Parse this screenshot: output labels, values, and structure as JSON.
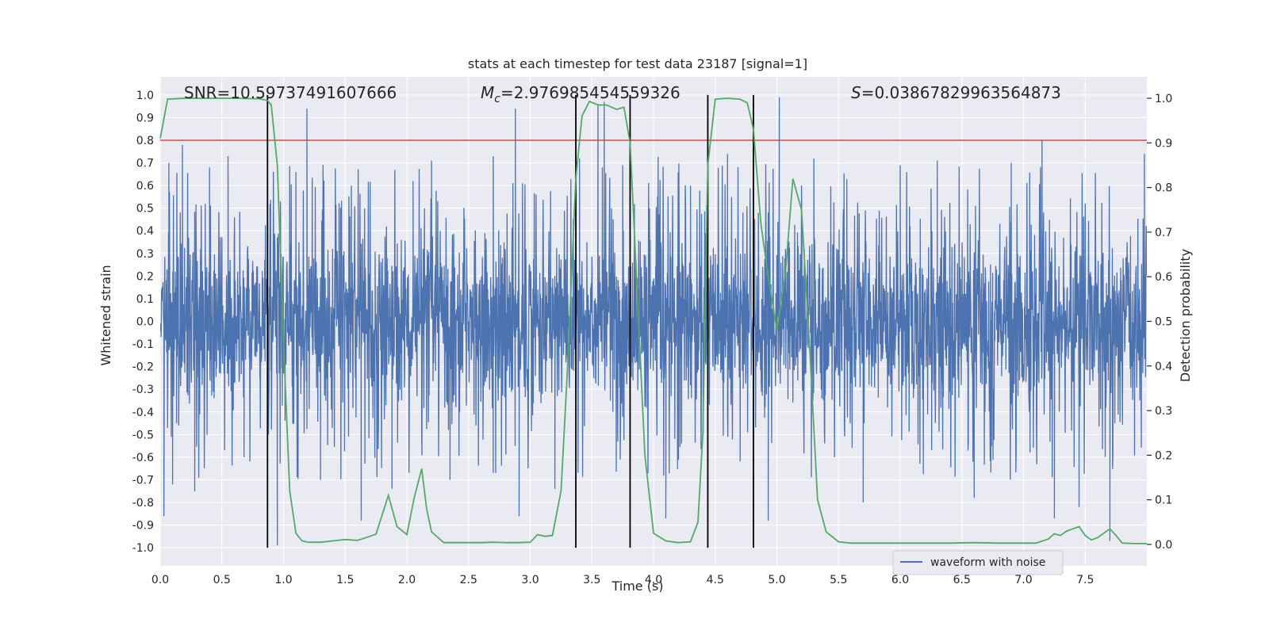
{
  "chart_data": {
    "type": "line",
    "title": "stats at each timestep for test data 23187 [signal=1]",
    "xlabel": "Time (s)",
    "ylabel_left": "Whitened strain",
    "ylabel_right": "Detection probability",
    "xlim": [
      0.0,
      8.0
    ],
    "ylim_left": [
      -1.08,
      1.08
    ],
    "ylim_right": [
      -0.048,
      1.048
    ],
    "x_ticks": [
      "0.0",
      "0.5",
      "1.0",
      "1.5",
      "2.0",
      "2.5",
      "3.0",
      "3.5",
      "4.0",
      "4.5",
      "5.0",
      "5.5",
      "6.0",
      "6.5",
      "7.0",
      "7.5"
    ],
    "x_tick_values": [
      0.0,
      0.5,
      1.0,
      1.5,
      2.0,
      2.5,
      3.0,
      3.5,
      4.0,
      4.5,
      5.0,
      5.5,
      6.0,
      6.5,
      7.0,
      7.5
    ],
    "y_left_ticks": [
      "1.0",
      "0.9",
      "0.8",
      "0.7",
      "0.6",
      "0.5",
      "0.4",
      "0.3",
      "0.2",
      "0.1",
      "0.0",
      "-0.1",
      "-0.2",
      "-0.3",
      "-0.4",
      "-0.5",
      "-0.6",
      "-0.7",
      "-0.8",
      "-0.9",
      "-1.0"
    ],
    "y_left_tick_values": [
      1.0,
      0.9,
      0.8,
      0.7,
      0.6,
      0.5,
      0.4,
      0.3,
      0.2,
      0.1,
      0.0,
      -0.1,
      -0.2,
      -0.3,
      -0.4,
      -0.5,
      -0.6,
      -0.7,
      -0.8,
      -0.9,
      -1.0
    ],
    "y_right_ticks": [
      "1.0",
      "0.9",
      "0.8",
      "0.7",
      "0.6",
      "0.5",
      "0.4",
      "0.3",
      "0.2",
      "0.1",
      "0.0"
    ],
    "y_right_tick_values": [
      1.0,
      0.9,
      0.8,
      0.7,
      0.6,
      0.5,
      0.4,
      0.3,
      0.2,
      0.1,
      0.0
    ],
    "annotations": {
      "snr": "SNR=10.59737491607666",
      "mc_symbol": "M",
      "mc_sub": "c",
      "mc_value": "=2.976985454559326",
      "s_symbol": "S",
      "s_value": "=0.03867829963564873"
    },
    "legend": {
      "label": "waveform with noise",
      "location": "lower-right"
    },
    "threshold": {
      "value": 0.8,
      "color": "#c44e52"
    },
    "detection_boundaries": [
      0.87,
      3.37,
      3.81,
      4.44,
      4.81
    ],
    "series": [
      {
        "name": "waveform with noise",
        "axis": "left",
        "color": "#4c72b0",
        "description": "Whitened noisy strain, roughly within +-0.5 with spikes up to +-1.0",
        "peaks": [
          [
            0.03,
            -0.86
          ],
          [
            0.07,
            0.7
          ],
          [
            0.1,
            -0.72
          ],
          [
            0.18,
            0.78
          ],
          [
            0.28,
            -0.75
          ],
          [
            0.4,
            0.68
          ],
          [
            0.55,
            0.73
          ],
          [
            0.68,
            -0.6
          ],
          [
            0.87,
            0.72
          ],
          [
            0.95,
            -0.99
          ],
          [
            1.1,
            0.66
          ],
          [
            1.19,
            0.94
          ],
          [
            1.3,
            -0.7
          ],
          [
            1.55,
            0.6
          ],
          [
            1.63,
            -0.88
          ],
          [
            1.88,
            -0.74
          ],
          [
            2.05,
            0.62
          ],
          [
            2.2,
            0.71
          ],
          [
            2.35,
            -0.7
          ],
          [
            2.7,
            0.73
          ],
          [
            2.88,
            0.94
          ],
          [
            2.91,
            -0.86
          ],
          [
            3.2,
            -0.74
          ],
          [
            3.4,
            0.72
          ],
          [
            3.55,
            0.96
          ],
          [
            3.6,
            0.97
          ],
          [
            3.75,
            0.69
          ],
          [
            4.1,
            -0.87
          ],
          [
            4.3,
            0.6
          ],
          [
            4.6,
            0.74
          ],
          [
            4.93,
            -0.88
          ],
          [
            5.02,
            0.99
          ],
          [
            5.3,
            0.72
          ],
          [
            5.7,
            -0.8
          ],
          [
            6.0,
            0.69
          ],
          [
            6.3,
            0.71
          ],
          [
            6.6,
            -0.78
          ],
          [
            6.9,
            0.7
          ],
          [
            7.15,
            0.8
          ],
          [
            7.25,
            -0.87
          ],
          [
            7.45,
            -0.82
          ],
          [
            7.7,
            -0.97
          ],
          [
            7.98,
            0.74
          ]
        ]
      },
      {
        "name": "detection probability",
        "axis": "right",
        "color": "#55a868",
        "x": [
          0.0,
          0.06,
          0.2,
          0.4,
          0.6,
          0.8,
          0.87,
          0.9,
          0.95,
          1.0,
          1.05,
          1.1,
          1.15,
          1.2,
          1.3,
          1.4,
          1.5,
          1.6,
          1.7,
          1.75,
          1.85,
          1.92,
          2.0,
          2.06,
          2.12,
          2.16,
          2.2,
          2.3,
          2.4,
          2.5,
          2.6,
          2.7,
          2.8,
          2.9,
          3.0,
          3.06,
          3.12,
          3.18,
          3.25,
          3.3,
          3.37,
          3.42,
          3.48,
          3.55,
          3.62,
          3.7,
          3.76,
          3.81,
          3.87,
          3.93,
          4.0,
          4.1,
          4.2,
          4.3,
          4.36,
          4.4,
          4.44,
          4.5,
          4.6,
          4.7,
          4.76,
          4.81,
          4.87,
          4.93,
          5.0,
          5.07,
          5.13,
          5.2,
          5.27,
          5.33,
          5.4,
          5.5,
          5.6,
          5.8,
          6.0,
          6.2,
          6.4,
          6.6,
          6.8,
          7.0,
          7.1,
          7.2,
          7.25,
          7.3,
          7.35,
          7.4,
          7.45,
          7.5,
          7.55,
          7.6,
          7.65,
          7.7,
          7.75,
          7.8,
          7.9,
          8.0
        ],
        "y": [
          0.91,
          0.998,
          1.0,
          1.0,
          1.0,
          0.999,
          0.995,
          0.985,
          0.85,
          0.45,
          0.12,
          0.025,
          0.008,
          0.005,
          0.005,
          0.008,
          0.011,
          0.009,
          0.018,
          0.023,
          0.11,
          0.04,
          0.022,
          0.105,
          0.17,
          0.08,
          0.028,
          0.004,
          0.004,
          0.004,
          0.004,
          0.005,
          0.004,
          0.004,
          0.005,
          0.022,
          0.018,
          0.02,
          0.12,
          0.38,
          0.82,
          0.96,
          0.993,
          0.985,
          0.985,
          0.975,
          0.98,
          0.9,
          0.55,
          0.2,
          0.025,
          0.008,
          0.004,
          0.006,
          0.05,
          0.25,
          0.85,
          0.998,
          1.0,
          0.998,
          0.99,
          0.93,
          0.72,
          0.6,
          0.48,
          0.61,
          0.82,
          0.75,
          0.42,
          0.1,
          0.028,
          0.006,
          0.003,
          0.003,
          0.003,
          0.003,
          0.003,
          0.004,
          0.003,
          0.003,
          0.003,
          0.012,
          0.024,
          0.02,
          0.03,
          0.035,
          0.04,
          0.02,
          0.01,
          0.015,
          0.025,
          0.035,
          0.02,
          0.003,
          0.002,
          0.002
        ]
      }
    ]
  }
}
